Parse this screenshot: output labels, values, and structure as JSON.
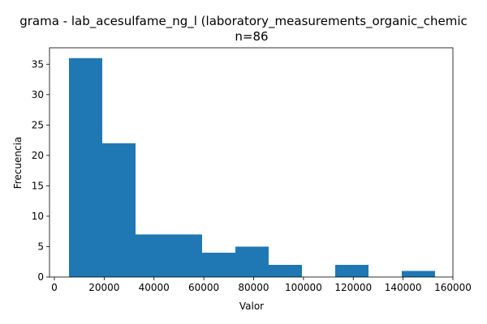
{
  "chart_data": {
    "type": "histogram",
    "title": "grama - lab_acesulfame_ng_l (laboratory_measurements_organic_chemic",
    "subtitle": "n=86",
    "x_label": "Valor",
    "y_label": "Frecuencia",
    "bins": [
      5865,
      19225,
      32585,
      45945,
      59305,
      72665,
      86025,
      99385,
      112745,
      126105,
      139465,
      152825
    ],
    "values": [
      36,
      22,
      7,
      7,
      4,
      5,
      2,
      0,
      2,
      0,
      1
    ],
    "color": "#1f77b4",
    "xlim": [
      -1950,
      160000
    ],
    "xticks": [
      0,
      20000,
      40000,
      60000,
      80000,
      100000,
      120000,
      140000,
      160000
    ],
    "ylim": [
      0,
      37.7
    ],
    "yticks": [
      0,
      5,
      10,
      15,
      20,
      25,
      30,
      35
    ]
  }
}
